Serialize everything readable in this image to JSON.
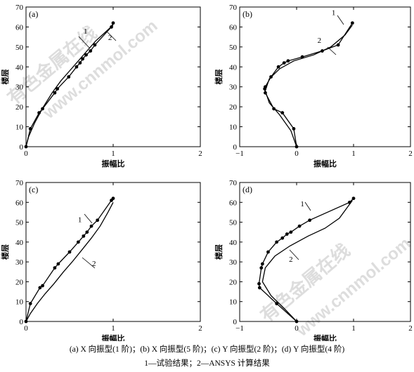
{
  "watermark": {
    "line1": "有色金属在线",
    "line2": "www.cnnmol.com"
  },
  "caption": {
    "line1": "(a) X 向振型(1 阶)；(b) X 向振型(5 阶)；(c) Y 向振型(2 阶)；(d) Y 向振型(4 阶)",
    "line2": "1—试验结果；2—ANSYS 计算结果"
  },
  "chart_data": [
    {
      "id": "a",
      "type": "line",
      "panel_label": "(a)",
      "xlabel": "振幅比",
      "ylabel": "楼层",
      "xlim": [
        0,
        2
      ],
      "ylim": [
        0,
        70
      ],
      "xticks": [
        "0",
        "1",
        "2"
      ],
      "yticks": [
        "0",
        "10",
        "20",
        "30",
        "40",
        "50",
        "60",
        "70"
      ],
      "series": [
        {
          "name": "1",
          "marker": "circle",
          "x": [
            0.0,
            0.05,
            0.15,
            0.19,
            0.33,
            0.36,
            0.49,
            0.58,
            0.62,
            0.65,
            0.69,
            0.74,
            0.79,
            0.98,
            1.0
          ],
          "y": [
            0,
            9,
            17,
            19,
            27,
            29,
            35,
            40,
            42,
            44,
            46,
            48,
            51,
            60,
            62
          ]
        },
        {
          "name": "2",
          "marker": "none",
          "x": [
            0.0,
            0.03,
            0.1,
            0.2,
            0.3,
            0.4,
            0.5,
            0.6,
            0.7,
            0.8,
            0.9,
            1.0
          ],
          "y": [
            0,
            5,
            12,
            20,
            27,
            33,
            38,
            43,
            48,
            53,
            57,
            61
          ]
        }
      ]
    },
    {
      "id": "b",
      "type": "line",
      "panel_label": "(b)",
      "xlabel": "振幅比",
      "ylabel": "楼层",
      "xlim": [
        -1,
        2
      ],
      "ylim": [
        0,
        70
      ],
      "xticks": [
        "−1",
        "0",
        "1",
        "2"
      ],
      "yticks": [
        "0",
        "10",
        "20",
        "30",
        "40",
        "50",
        "60",
        "70"
      ],
      "series": [
        {
          "name": "1",
          "marker": "circle",
          "x": [
            0.0,
            -0.05,
            -0.25,
            -0.4,
            -0.55,
            -0.56,
            -0.55,
            -0.45,
            -0.32,
            -0.22,
            -0.15,
            0.1,
            0.45,
            0.73,
            0.98
          ],
          "y": [
            0,
            9,
            17,
            19,
            27,
            29,
            30,
            35,
            40,
            42,
            43,
            45,
            48,
            51,
            62
          ]
        },
        {
          "name": "2",
          "marker": "none",
          "x": [
            0.0,
            -0.1,
            -0.3,
            -0.48,
            -0.55,
            -0.48,
            -0.3,
            -0.05,
            0.3,
            0.6,
            0.85,
            0.98
          ],
          "y": [
            0,
            8,
            16,
            22,
            28,
            34,
            39,
            43,
            46,
            50,
            56,
            61
          ]
        }
      ]
    },
    {
      "id": "c",
      "type": "line",
      "panel_label": "(c)",
      "xlabel": "振幅比",
      "ylabel": "楼层",
      "xlim": [
        0,
        2
      ],
      "ylim": [
        0,
        70
      ],
      "xticks": [
        "0",
        "1",
        "2"
      ],
      "yticks": [
        "0",
        "10",
        "20",
        "30",
        "40",
        "50",
        "60",
        "70"
      ],
      "series": [
        {
          "name": "1",
          "marker": "circle",
          "x": [
            0.0,
            0.05,
            0.16,
            0.19,
            0.33,
            0.37,
            0.5,
            0.6,
            0.66,
            0.7,
            0.75,
            0.82,
            0.98,
            1.0
          ],
          "y": [
            0,
            9,
            17,
            18,
            27,
            29,
            35,
            40,
            43,
            45,
            48,
            51,
            61,
            62
          ]
        },
        {
          "name": "2",
          "marker": "none",
          "x": [
            0.0,
            0.05,
            0.13,
            0.22,
            0.32,
            0.43,
            0.53,
            0.64,
            0.75,
            0.85,
            0.94,
            1.0
          ],
          "y": [
            0,
            4,
            9,
            14,
            19,
            25,
            30,
            36,
            42,
            48,
            55,
            60
          ]
        }
      ]
    },
    {
      "id": "d",
      "type": "line",
      "panel_label": "(d)",
      "xlabel": "振幅比",
      "ylabel": "楼层",
      "xlim": [
        -1,
        2
      ],
      "ylim": [
        0,
        70
      ],
      "xticks": [
        "−1",
        "0",
        "1",
        "2"
      ],
      "yticks": [
        "0",
        "10",
        "20",
        "30",
        "40",
        "50",
        "60",
        "70"
      ],
      "series": [
        {
          "name": "1",
          "marker": "circle",
          "x": [
            0.0,
            -0.35,
            -0.65,
            -0.66,
            -0.62,
            -0.6,
            -0.5,
            -0.35,
            -0.25,
            -0.17,
            -0.1,
            0.05,
            0.23,
            0.93,
            1.0
          ],
          "y": [
            0,
            9,
            17,
            19,
            27,
            29,
            35,
            40,
            42,
            44,
            45,
            48,
            51,
            60,
            62
          ]
        },
        {
          "name": "2",
          "marker": "none",
          "x": [
            0.0,
            -0.2,
            -0.45,
            -0.6,
            -0.55,
            -0.38,
            -0.12,
            0.2,
            0.5,
            0.75,
            0.98
          ],
          "y": [
            0,
            6,
            13,
            20,
            27,
            33,
            38,
            43,
            47,
            52,
            61
          ]
        }
      ]
    }
  ]
}
